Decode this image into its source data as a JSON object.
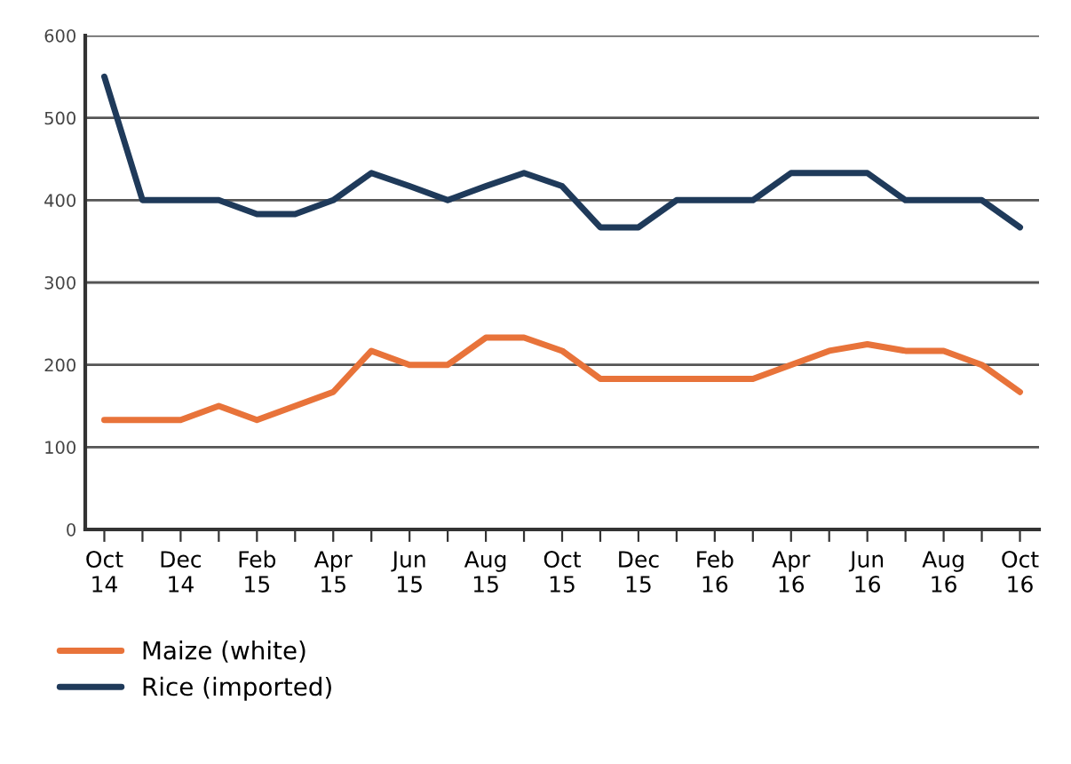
{
  "chart_data": {
    "type": "line",
    "categories": [
      "Oct\n14",
      null,
      "Dec\n14",
      null,
      "Feb\n15",
      null,
      "Apr\n15",
      null,
      "Jun\n15",
      null,
      "Aug\n15",
      null,
      "Oct\n15",
      null,
      "Dec\n15",
      null,
      "Feb\n16",
      null,
      "Apr\n16",
      null,
      "Jun\n16",
      null,
      "Aug\n16",
      null,
      "Oct\n16"
    ],
    "series": [
      {
        "name": "Maize (white)",
        "color": "#e8733a",
        "values": [
          133,
          133,
          133,
          150,
          133,
          150,
          167,
          217,
          200,
          200,
          233,
          233,
          217,
          183,
          183,
          183,
          183,
          183,
          200,
          217,
          225,
          217,
          217,
          200,
          167
        ]
      },
      {
        "name": "Rice (imported)",
        "color": "#1f3a5a",
        "values": [
          550,
          400,
          400,
          400,
          383,
          383,
          400,
          433,
          417,
          400,
          417,
          433,
          417,
          367,
          367,
          400,
          400,
          400,
          433,
          433,
          433,
          400,
          400,
          400,
          367
        ]
      }
    ],
    "ylim": [
      0,
      600
    ],
    "yticks": [
      0,
      100,
      200,
      300,
      400,
      500,
      600
    ],
    "grid": "y",
    "legend": "bottom left",
    "marker": "none",
    "line_style": "solid"
  }
}
